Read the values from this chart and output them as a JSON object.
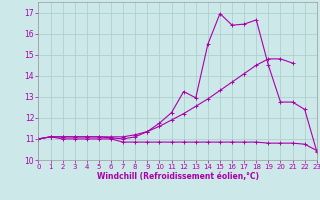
{
  "xlabel": "Windchill (Refroidissement éolien,°C)",
  "xlim": [
    0,
    23
  ],
  "ylim": [
    10,
    17.5
  ],
  "yticks": [
    10,
    11,
    12,
    13,
    14,
    15,
    16,
    17
  ],
  "xticks": [
    0,
    1,
    2,
    3,
    4,
    5,
    6,
    7,
    8,
    9,
    10,
    11,
    12,
    13,
    14,
    15,
    16,
    17,
    18,
    19,
    20,
    21,
    22,
    23
  ],
  "bg_color": "#cce8e8",
  "grid_color": "#aacccc",
  "line_color": "#aa00aa",
  "line1_x": [
    0,
    1,
    2,
    3,
    4,
    5,
    6,
    7,
    8,
    9,
    10,
    11,
    12,
    13,
    14,
    15,
    16,
    17,
    18,
    19,
    20,
    21
  ],
  "line1_y": [
    11.0,
    11.1,
    11.1,
    11.1,
    11.1,
    11.1,
    11.1,
    11.1,
    11.2,
    11.35,
    11.6,
    11.9,
    12.2,
    12.55,
    12.9,
    13.3,
    13.7,
    14.1,
    14.5,
    14.8,
    14.8,
    14.6
  ],
  "line2_x": [
    0,
    1,
    2,
    3,
    4,
    5,
    6,
    7,
    8,
    9,
    10,
    11,
    12,
    13,
    14,
    15,
    16,
    17,
    18,
    19,
    20,
    21,
    22,
    23
  ],
  "line2_y": [
    11.0,
    11.1,
    11.0,
    11.0,
    11.0,
    11.0,
    11.0,
    10.85,
    10.85,
    10.85,
    10.85,
    10.85,
    10.85,
    10.85,
    10.85,
    10.85,
    10.85,
    10.85,
    10.85,
    10.8,
    10.8,
    10.8,
    10.75,
    10.45
  ],
  "line3_x": [
    0,
    1,
    2,
    3,
    4,
    5,
    6,
    7,
    8,
    9,
    10,
    11,
    12,
    13,
    14,
    15,
    16,
    17,
    18,
    19,
    20,
    21,
    22,
    23
  ],
  "line3_y": [
    11.0,
    11.1,
    11.1,
    11.1,
    11.1,
    11.1,
    11.05,
    11.0,
    11.1,
    11.35,
    11.75,
    12.25,
    13.25,
    12.95,
    15.5,
    16.95,
    16.4,
    16.45,
    16.65,
    14.5,
    12.75,
    12.75,
    12.4,
    10.4
  ]
}
